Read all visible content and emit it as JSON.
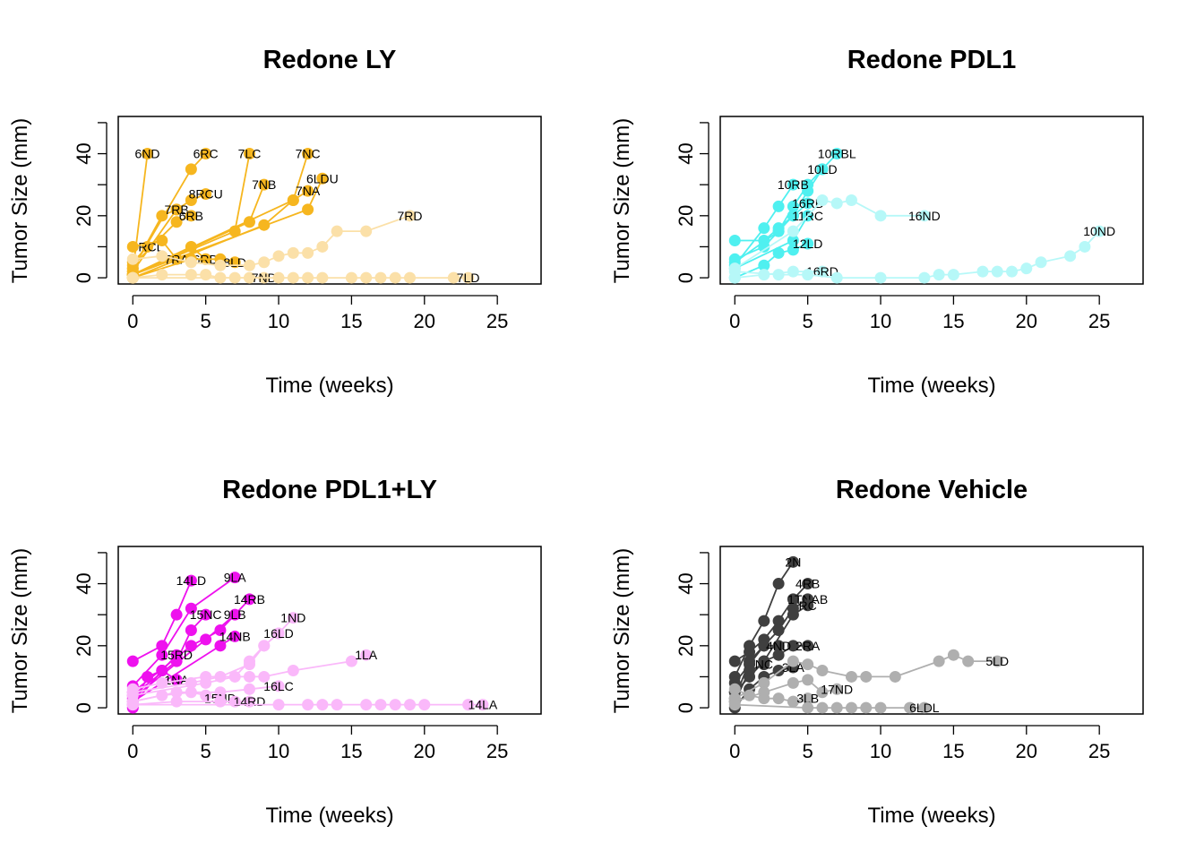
{
  "chart_data": [
    {
      "type": "line",
      "title": "Redone LY",
      "xlabel": "Time (weeks)",
      "ylabel": "Tumor Size (mm)",
      "xticks": [
        0,
        5,
        10,
        15,
        20,
        25
      ],
      "yticks": [
        0,
        20,
        40
      ],
      "xlim": [
        -1,
        28
      ],
      "ylim": [
        -2,
        52
      ],
      "grid": false,
      "series": [
        {
          "name": "6ND",
          "color": "#F6B61F",
          "x": [
            0,
            1
          ],
          "y": [
            2,
            40
          ]
        },
        {
          "name": "6RC",
          "color": "#F6B61F",
          "x": [
            0,
            4,
            5
          ],
          "y": [
            3,
            35,
            40
          ]
        },
        {
          "name": "7LC",
          "color": "#F6B61F",
          "x": [
            0,
            7,
            8
          ],
          "y": [
            1,
            15,
            40
          ]
        },
        {
          "name": "7NC",
          "color": "#F6B61F",
          "x": [
            0,
            9,
            11,
            12
          ],
          "y": [
            0,
            17,
            25,
            40
          ]
        },
        {
          "name": "6LDU",
          "color": "#F6B61F",
          "x": [
            0,
            12,
            13
          ],
          "y": [
            1,
            22,
            32
          ]
        },
        {
          "name": "7NA",
          "color": "#F6B61F",
          "x": [
            0,
            11,
            12
          ],
          "y": [
            1,
            25,
            28
          ]
        },
        {
          "name": "7NB",
          "color": "#F6B61F",
          "x": [
            0,
            8,
            9
          ],
          "y": [
            1,
            18,
            30
          ]
        },
        {
          "name": "8RCU",
          "color": "#F6B61F",
          "x": [
            0,
            3,
            4,
            5
          ],
          "y": [
            2,
            22,
            25,
            27
          ]
        },
        {
          "name": "7RB",
          "color": "#F6B61F",
          "x": [
            0,
            2,
            3
          ],
          "y": [
            3,
            20,
            22
          ]
        },
        {
          "name": "6RB",
          "color": "#F6B61F",
          "x": [
            0,
            3,
            4
          ],
          "y": [
            4,
            18,
            20
          ]
        },
        {
          "name": "8RCL",
          "color": "#F6B61F",
          "x": [
            0,
            1
          ],
          "y": [
            5,
            10
          ]
        },
        {
          "name": "7RA",
          "color": "#F6B61F",
          "x": [
            0,
            2,
            3
          ],
          "y": [
            10,
            12,
            6
          ]
        },
        {
          "name": "6RD",
          "color": "#F6B61F",
          "x": [
            0,
            4,
            5
          ],
          "y": [
            1,
            10,
            6
          ]
        },
        {
          "name": "8LD",
          "color": "#F6B61F",
          "x": [
            0,
            4,
            6,
            7
          ],
          "y": [
            0,
            6,
            6,
            5
          ]
        },
        {
          "name": "7RD",
          "color": "#FBE0A8",
          "x": [
            0,
            2,
            4,
            6,
            8,
            9,
            10,
            11,
            12,
            13,
            14,
            16,
            19
          ],
          "y": [
            6,
            7,
            5,
            4,
            4,
            5,
            7,
            8,
            8,
            10,
            15,
            15,
            20
          ]
        },
        {
          "name": "7ND",
          "color": "#FBE0A8",
          "x": [
            0,
            2,
            4,
            5,
            6,
            7,
            8,
            9
          ],
          "y": [
            0,
            1,
            1,
            1,
            0,
            0,
            0,
            0
          ]
        },
        {
          "name": "7LD",
          "color": "#FBE0A8",
          "x": [
            0,
            10,
            11,
            12,
            13,
            15,
            16,
            17,
            18,
            19,
            22,
            23
          ],
          "y": [
            0,
            0,
            0,
            0,
            0,
            0,
            0,
            0,
            0,
            0,
            0,
            0
          ]
        }
      ]
    },
    {
      "type": "line",
      "title": "Redone PDL1",
      "xlabel": "Time (weeks)",
      "ylabel": "Tumor Size (mm)",
      "xticks": [
        0,
        5,
        10,
        15,
        20,
        25
      ],
      "yticks": [
        0,
        20,
        40
      ],
      "xlim": [
        -1,
        28
      ],
      "ylim": [
        -2,
        52
      ],
      "grid": false,
      "series": [
        {
          "name": "10RBL",
          "color": "#4FF0F0",
          "x": [
            0,
            2,
            3,
            4,
            5,
            6,
            7
          ],
          "y": [
            12,
            12,
            16,
            20,
            28,
            35,
            40
          ]
        },
        {
          "name": "10LD",
          "color": "#4FF0F0",
          "x": [
            0,
            2,
            3,
            4,
            5,
            6
          ],
          "y": [
            6,
            10,
            15,
            23,
            30,
            35
          ]
        },
        {
          "name": "10RB",
          "color": "#4FF0F0",
          "x": [
            0,
            2,
            3,
            4
          ],
          "y": [
            4,
            16,
            23,
            30
          ]
        },
        {
          "name": "16RB",
          "color": "#4FF0F0",
          "x": [
            0,
            3,
            4,
            5
          ],
          "y": [
            5,
            15,
            20,
            24
          ]
        },
        {
          "name": "11RC",
          "color": "#4FF0F0",
          "x": [
            0,
            4,
            5
          ],
          "y": [
            3,
            12,
            20
          ]
        },
        {
          "name": "12LD",
          "color": "#4FF0F0",
          "x": [
            0,
            2,
            3,
            4,
            5
          ],
          "y": [
            0,
            4,
            8,
            9,
            11
          ]
        },
        {
          "name": "16ND",
          "color": "#B6F8F8",
          "x": [
            0,
            4,
            6,
            7,
            8,
            10,
            13
          ],
          "y": [
            3,
            15,
            25,
            24,
            25,
            20,
            20
          ]
        },
        {
          "name": "16RD",
          "color": "#B6F8F8",
          "x": [
            0,
            2,
            4,
            6
          ],
          "y": [
            0,
            1,
            2,
            2
          ]
        },
        {
          "name": "10ND",
          "color": "#B6F8F8",
          "x": [
            0,
            3,
            5,
            7,
            10,
            13,
            14,
            15,
            17,
            18,
            19,
            20,
            21,
            23,
            24,
            25
          ],
          "y": [
            2,
            1,
            1,
            0,
            0,
            0,
            1,
            1,
            2,
            2,
            2,
            3,
            5,
            7,
            10,
            15
          ]
        }
      ]
    },
    {
      "type": "line",
      "title": "Redone PDL1+LY",
      "xlabel": "Time (weeks)",
      "ylabel": "Tumor Size (mm)",
      "xticks": [
        0,
        5,
        10,
        15,
        20,
        25
      ],
      "yticks": [
        0,
        20,
        40
      ],
      "xlim": [
        -1,
        28
      ],
      "ylim": [
        -2,
        52
      ],
      "grid": false,
      "series": [
        {
          "name": "14LD",
          "color": "#EE11EE",
          "x": [
            0,
            2,
            3,
            4
          ],
          "y": [
            15,
            20,
            30,
            41
          ]
        },
        {
          "name": "9LA",
          "color": "#EE11EE",
          "x": [
            0,
            2,
            4,
            7
          ],
          "y": [
            7,
            17,
            32,
            42
          ]
        },
        {
          "name": "14RB",
          "color": "#EE11EE",
          "x": [
            0,
            4,
            6,
            8
          ],
          "y": [
            5,
            20,
            25,
            35
          ]
        },
        {
          "name": "15NC",
          "color": "#EE11EE",
          "x": [
            0,
            3,
            4,
            5
          ],
          "y": [
            4,
            15,
            25,
            30
          ]
        },
        {
          "name": "9LB",
          "color": "#EE11EE",
          "x": [
            0,
            5,
            7
          ],
          "y": [
            3,
            22,
            30
          ]
        },
        {
          "name": "14NB",
          "color": "#EE11EE",
          "x": [
            0,
            6,
            7
          ],
          "y": [
            2,
            20,
            23
          ]
        },
        {
          "name": "15RD",
          "color": "#EE11EE",
          "x": [
            0,
            2,
            3
          ],
          "y": [
            1,
            12,
            17
          ]
        },
        {
          "name": "1NA",
          "color": "#EE11EE",
          "x": [
            0,
            1,
            2,
            3
          ],
          "y": [
            0,
            10,
            12,
            9
          ]
        },
        {
          "name": "1ND",
          "color": "#FAB8FA",
          "x": [
            0,
            4,
            6,
            8,
            9,
            10,
            11
          ],
          "y": [
            5,
            8,
            10,
            14,
            20,
            24,
            29
          ]
        },
        {
          "name": "16LD",
          "color": "#FAB8FA",
          "x": [
            0,
            5,
            7,
            8,
            9,
            10
          ],
          "y": [
            4,
            8,
            10,
            15,
            20,
            24
          ]
        },
        {
          "name": "1LA",
          "color": "#FAB8FA",
          "x": [
            0,
            2,
            5,
            8,
            9,
            11,
            15,
            16
          ],
          "y": [
            6,
            8,
            10,
            10,
            10,
            12,
            15,
            17
          ]
        },
        {
          "name": "16LC",
          "color": "#FAB8FA",
          "x": [
            0,
            3,
            6,
            8,
            10
          ],
          "y": [
            2,
            5,
            5,
            6,
            7
          ]
        },
        {
          "name": "15ND",
          "color": "#FAB8FA",
          "x": [
            0,
            2,
            4,
            5,
            6
          ],
          "y": [
            2,
            4,
            5,
            4,
            3
          ]
        },
        {
          "name": "14RD",
          "color": "#FAB8FA",
          "x": [
            0,
            3,
            6,
            7,
            8
          ],
          "y": [
            1,
            2,
            2,
            2,
            2
          ]
        },
        {
          "name": "14LA",
          "color": "#FAB8FA",
          "x": [
            0,
            10,
            12,
            13,
            14,
            16,
            17,
            18,
            19,
            20,
            23,
            24
          ],
          "y": [
            1,
            1,
            1,
            1,
            1,
            1,
            1,
            1,
            1,
            1,
            1,
            1
          ]
        }
      ]
    },
    {
      "type": "line",
      "title": "Redone Vehicle",
      "xlabel": "Time (weeks)",
      "ylabel": "Tumor Size (mm)",
      "xticks": [
        0,
        5,
        10,
        15,
        20,
        25
      ],
      "yticks": [
        0,
        20,
        40
      ],
      "xlim": [
        -1,
        28
      ],
      "ylim": [
        -2,
        52
      ],
      "grid": false,
      "series": [
        {
          "name": "2N",
          "color": "#3F3F3F",
          "x": [
            0,
            1,
            2,
            3,
            4
          ],
          "y": [
            10,
            20,
            28,
            40,
            47
          ]
        },
        {
          "name": "4RB",
          "color": "#3F3F3F",
          "x": [
            0,
            1,
            2,
            3,
            4,
            5
          ],
          "y": [
            15,
            18,
            22,
            28,
            35,
            40
          ]
        },
        {
          "name": "1TNAB",
          "color": "#3F3F3F",
          "x": [
            0,
            1,
            2,
            3,
            4,
            5
          ],
          "y": [
            8,
            14,
            20,
            25,
            32,
            35
          ]
        },
        {
          "name": "RC",
          "color": "#3F3F3F",
          "x": [
            0,
            2,
            4,
            5
          ],
          "y": [
            5,
            15,
            30,
            33
          ]
        },
        {
          "name": "2RA",
          "color": "#3F3F3F",
          "x": [
            0,
            1,
            2,
            3,
            4,
            5
          ],
          "y": [
            5,
            10,
            15,
            17,
            20,
            20
          ]
        },
        {
          "name": "4ND",
          "color": "#3F3F3F",
          "x": [
            0,
            1,
            2,
            3
          ],
          "y": [
            3,
            15,
            20,
            20
          ]
        },
        {
          "name": "NC",
          "color": "#3F3F3F",
          "x": [
            0,
            1,
            2
          ],
          "y": [
            2,
            12,
            14
          ]
        },
        {
          "name": "3LA",
          "color": "#3F3F3F",
          "x": [
            0,
            1,
            2,
            3,
            4
          ],
          "y": [
            0,
            6,
            10,
            12,
            13
          ]
        },
        {
          "name": "5LD",
          "color": "#AFAFAF",
          "x": [
            0,
            2,
            4,
            5,
            6,
            8,
            9,
            11,
            14,
            15,
            16,
            18
          ],
          "y": [
            3,
            8,
            15,
            14,
            12,
            10,
            10,
            10,
            15,
            17,
            15,
            15
          ]
        },
        {
          "name": "17ND",
          "color": "#AFAFAF",
          "x": [
            0,
            2,
            4,
            5,
            6,
            7
          ],
          "y": [
            2,
            5,
            8,
            9,
            5,
            6
          ]
        },
        {
          "name": "3LB",
          "color": "#AFAFAF",
          "x": [
            0,
            1,
            2,
            3,
            4,
            5
          ],
          "y": [
            6,
            4,
            3,
            3,
            2,
            3
          ]
        },
        {
          "name": "6LDL",
          "color": "#AFAFAF",
          "x": [
            0,
            5,
            6,
            7,
            8,
            9,
            10,
            12,
            13
          ],
          "y": [
            1,
            0,
            0,
            0,
            0,
            0,
            0,
            0,
            0
          ]
        }
      ]
    }
  ]
}
